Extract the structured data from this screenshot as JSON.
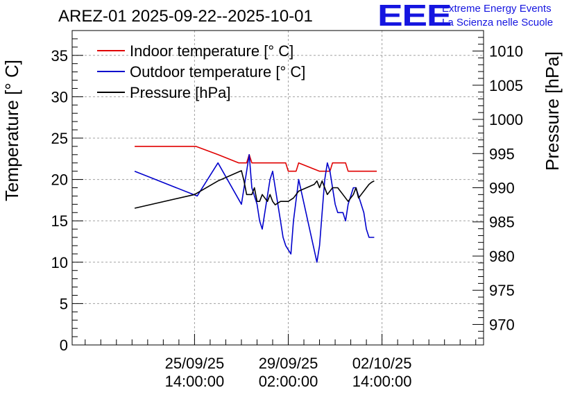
{
  "header": {
    "title": "AREZ-01 2025-09-22--2025-10-01",
    "logo_text": "EEE",
    "logo_line1": "Extreme Energy Events",
    "logo_line2": "La Scienza nelle Scuole"
  },
  "chart_data": {
    "type": "line",
    "xlabel": "",
    "ylabel": "Temperature [° C]",
    "ylabel_right": "Pressure [hPa]",
    "x_range": [
      -47,
      111
    ],
    "ylim": [
      0,
      38
    ],
    "ylim_right": [
      967,
      1013
    ],
    "x_ticks": [
      {
        "x": 0,
        "line1": "25/09/25",
        "line2": "14:00:00"
      },
      {
        "x": 36,
        "line1": "29/09/25",
        "line2": "02:00:00"
      },
      {
        "x": 72,
        "line1": "02/10/25",
        "line2": "14:00:00"
      }
    ],
    "y_ticks": [
      0,
      5,
      10,
      15,
      20,
      25,
      30,
      35
    ],
    "y_ticks_right": [
      970,
      975,
      980,
      985,
      990,
      995,
      1000,
      1005,
      1010
    ],
    "grid": true,
    "legend_position": "top-left",
    "series": [
      {
        "name": "Indoor temperature [° C]",
        "color": "#e00000",
        "axis": "left",
        "x": [
          -23,
          0.5,
          9,
          17,
          20,
          21,
          22,
          35,
          36,
          39,
          40,
          48,
          52,
          53,
          58,
          59,
          70
        ],
        "values": [
          24,
          24,
          23,
          22,
          22,
          23,
          22,
          22,
          21,
          21,
          22,
          21,
          21,
          22,
          22,
          21,
          21
        ]
      },
      {
        "name": "Outdoor temperature [° C]",
        "color": "#0000cc",
        "axis": "left",
        "x": [
          -23,
          1,
          9,
          18,
          20,
          21,
          22,
          24,
          25,
          26,
          27,
          29,
          30,
          31,
          32,
          33,
          34,
          35,
          37,
          38,
          40,
          47,
          48,
          49,
          50,
          51,
          52,
          53,
          54,
          55,
          56,
          57,
          58,
          59,
          60,
          61,
          62,
          63,
          64,
          65,
          66,
          67,
          68,
          69
        ],
        "values": [
          21,
          18,
          22,
          17,
          21,
          23,
          19,
          17,
          15,
          14,
          16,
          20,
          21,
          19,
          17,
          15,
          13,
          12,
          11,
          15,
          20,
          10,
          12,
          16,
          20,
          22,
          21,
          19,
          17,
          16,
          16,
          16,
          15,
          17,
          18,
          19,
          19,
          18,
          17,
          16,
          14,
          13,
          13,
          13
        ]
      },
      {
        "name": "Pressure [hPa]",
        "color": "#000000",
        "axis": "right",
        "x": [
          -23,
          0,
          9,
          18,
          19,
          20,
          22,
          23,
          24,
          25,
          26,
          27,
          28,
          29,
          30,
          31,
          33,
          36,
          38,
          40,
          43,
          46,
          47,
          48,
          49,
          51,
          53,
          55,
          57,
          59,
          61,
          62,
          63,
          64,
          65,
          66,
          67,
          68,
          69
        ],
        "values": [
          987,
          989,
          991,
          992.5,
          991,
          989,
          989,
          990,
          988,
          988,
          989,
          988.5,
          988,
          989,
          988,
          987.5,
          988,
          988,
          988.5,
          989.5,
          990,
          990.5,
          991,
          990,
          991,
          989,
          990,
          990,
          989,
          988,
          989,
          990,
          988.5,
          989,
          989.5,
          990,
          990.5,
          990.8,
          991
        ]
      }
    ]
  }
}
